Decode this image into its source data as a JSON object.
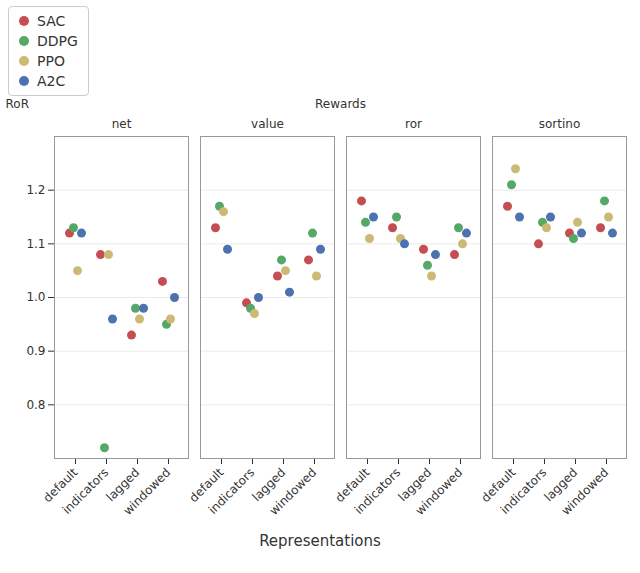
{
  "chart_data": {
    "type": "scatter",
    "categories": [
      "default",
      "indicators",
      "lagged",
      "windowed"
    ],
    "xlabel": "Representations",
    "groups": [
      "net",
      "value",
      "ror",
      "sortino"
    ],
    "group_label": "Rewards",
    "ylabel": "RoR",
    "ylim": [
      0.7,
      1.3
    ],
    "yticks": [
      0.8,
      0.9,
      {
        "value": 1,
        "label": "1.0"
      },
      1.1,
      1.2
    ],
    "grid": true,
    "legend": "top-left",
    "series": [
      {
        "name": "SAC",
        "color": "#c44e52",
        "values": [
          [
            1.12,
            1.08,
            0.93,
            1.03
          ],
          [
            1.13,
            0.99,
            1.04,
            1.07
          ],
          [
            1.18,
            1.13,
            1.09,
            1.08
          ],
          [
            1.17,
            1.1,
            1.12,
            1.13
          ]
        ]
      },
      {
        "name": "DDPG",
        "color": "#55a868",
        "values": [
          [
            1.13,
            0.72,
            0.98,
            0.95
          ],
          [
            1.17,
            0.98,
            1.07,
            1.12
          ],
          [
            1.14,
            1.15,
            1.06,
            1.13
          ],
          [
            1.21,
            1.14,
            1.11,
            1.18
          ]
        ]
      },
      {
        "name": "PPO",
        "color": "#ccb974",
        "values": [
          [
            1.05,
            1.08,
            0.96,
            0.96
          ],
          [
            1.16,
            0.97,
            1.05,
            1.04
          ],
          [
            1.11,
            1.11,
            1.04,
            1.1
          ],
          [
            1.24,
            1.13,
            1.14,
            1.15
          ]
        ]
      },
      {
        "name": "A2C",
        "color": "#4c72b0",
        "values": [
          [
            1.12,
            0.96,
            0.98,
            1.0
          ],
          [
            1.09,
            1.0,
            1.01,
            1.09
          ],
          [
            1.15,
            1.1,
            1.08,
            1.12
          ],
          [
            1.15,
            1.15,
            1.12,
            1.12
          ]
        ]
      }
    ]
  }
}
